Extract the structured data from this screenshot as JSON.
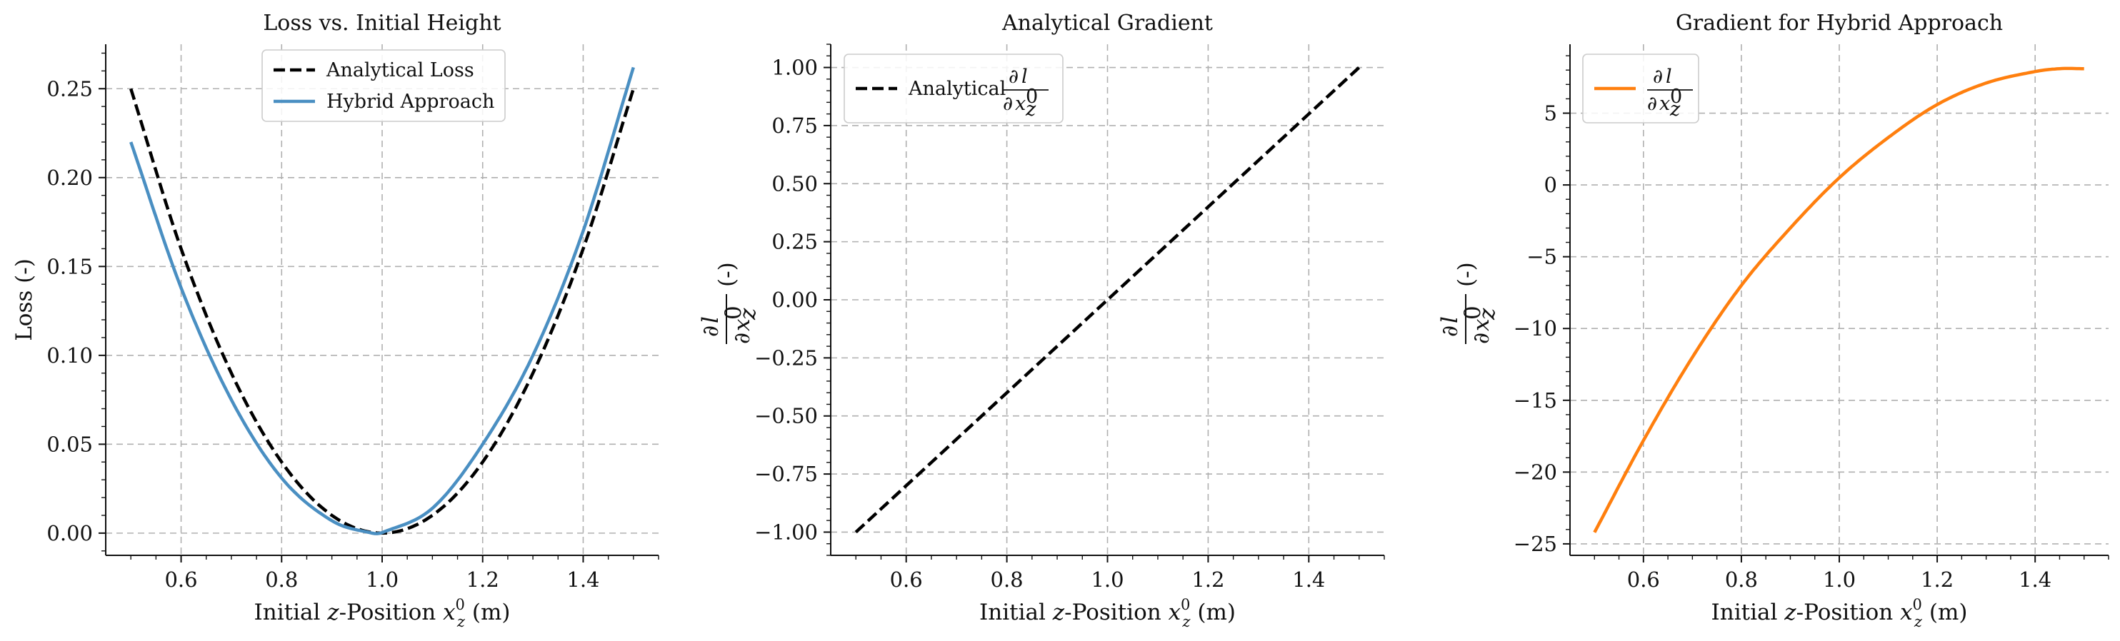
{
  "chart_data": [
    {
      "type": "line",
      "title": "Loss vs. Initial Height",
      "xlabel": "Initial z-Position x_z^0 (m)",
      "ylabel": "Loss (-)",
      "xlim": [
        0.45,
        1.55
      ],
      "ylim": [
        -0.0125,
        0.275
      ],
      "xticks": [
        0.6,
        0.8,
        1.0,
        1.2,
        1.4
      ],
      "xtick_labels": [
        "0.6",
        "0.8",
        "1.0",
        "1.2",
        "1.4"
      ],
      "yticks": [
        0.0,
        0.05,
        0.1,
        0.15,
        0.2,
        0.25
      ],
      "ytick_labels": [
        "0.00",
        "0.05",
        "0.10",
        "0.15",
        "0.20",
        "0.25"
      ],
      "grid": true,
      "legend": "top-center",
      "series": [
        {
          "name": "Analytical Loss",
          "color": "#000000",
          "dash": "dashed",
          "x": [
            0.5,
            0.6,
            0.7,
            0.8,
            0.9,
            1.0,
            1.1,
            1.2,
            1.3,
            1.4,
            1.5
          ],
          "y": [
            0.25,
            0.16,
            0.09,
            0.04,
            0.01,
            0.0,
            0.01,
            0.04,
            0.09,
            0.16,
            0.25
          ]
        },
        {
          "name": "Hybrid Approach",
          "color": "#4a8fc2",
          "dash": "solid",
          "x": [
            0.5,
            0.6,
            0.7,
            0.8,
            0.9,
            0.98,
            1.0,
            1.1,
            1.2,
            1.3,
            1.4,
            1.5
          ],
          "y": [
            0.22,
            0.138,
            0.075,
            0.031,
            0.007,
            0.0,
            0.0003,
            0.014,
            0.05,
            0.1,
            0.17,
            0.262
          ]
        }
      ]
    },
    {
      "type": "line",
      "title": "Analytical Gradient",
      "xlabel": "Initial z-Position x_z^0 (m)",
      "ylabel": "∂l/∂x_z^0 (-)",
      "xlim": [
        0.45,
        1.55
      ],
      "ylim": [
        -1.1,
        1.1
      ],
      "xticks": [
        0.6,
        0.8,
        1.0,
        1.2,
        1.4
      ],
      "xtick_labels": [
        "0.6",
        "0.8",
        "1.0",
        "1.2",
        "1.4"
      ],
      "yticks": [
        -1.0,
        -0.75,
        -0.5,
        -0.25,
        0.0,
        0.25,
        0.5,
        0.75,
        1.0
      ],
      "ytick_labels": [
        "−1.00",
        "−0.75",
        "−0.50",
        "−0.25",
        "0.00",
        "0.25",
        "0.50",
        "0.75",
        "1.00"
      ],
      "grid": true,
      "legend": "top-left",
      "series": [
        {
          "name": "Analytical ∂l/∂x_z^0",
          "color": "#000000",
          "dash": "dashed",
          "x": [
            0.5,
            1.5
          ],
          "y": [
            -1.0,
            1.0
          ]
        }
      ]
    },
    {
      "type": "line",
      "title": "Gradient for Hybrid Approach",
      "xlabel": "Initial z-Position x_z^0 (m)",
      "ylabel": "∂l/∂x_z^0 (-)",
      "xlim": [
        0.45,
        1.55
      ],
      "ylim": [
        -25.8,
        9.8
      ],
      "xticks": [
        0.6,
        0.8,
        1.0,
        1.2,
        1.4
      ],
      "xtick_labels": [
        "0.6",
        "0.8",
        "1.0",
        "1.2",
        "1.4"
      ],
      "yticks": [
        -25,
        -20,
        -15,
        -10,
        -5,
        0,
        5
      ],
      "ytick_labels": [
        "−25",
        "−20",
        "−15",
        "−10",
        "−5",
        "0",
        "5"
      ],
      "grid": true,
      "legend": "top-left",
      "series": [
        {
          "name": "∂l/∂x_z^0",
          "color": "#ff7f0e",
          "dash": "solid",
          "x": [
            0.5,
            0.6,
            0.7,
            0.8,
            0.9,
            1.0,
            1.1,
            1.2,
            1.3,
            1.4,
            1.45,
            1.5
          ],
          "y": [
            -24.2,
            -17.8,
            -12.0,
            -7.0,
            -3.0,
            0.5,
            3.3,
            5.6,
            7.1,
            7.9,
            8.1,
            8.1
          ]
        }
      ]
    }
  ]
}
